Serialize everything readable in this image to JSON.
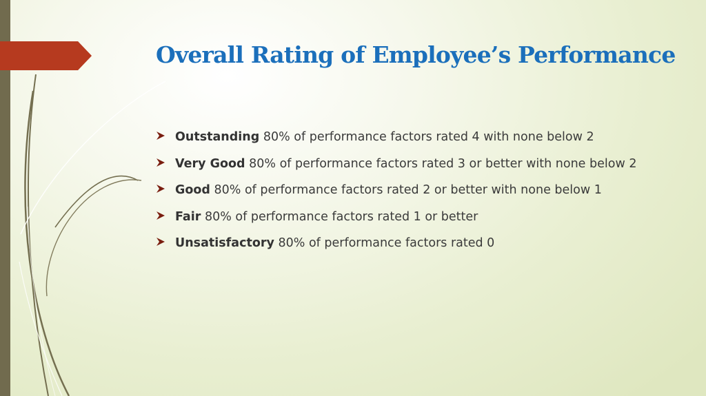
{
  "slide": {
    "title": "Overall Rating of Employee’s Performance",
    "bullets": [
      {
        "term": "Outstanding",
        "description": "80% of performance factors rated 4 with none below 2"
      },
      {
        "term": "Very Good",
        "description": "80% of performance factors rated 3 or better with none below 2"
      },
      {
        "term": "Good",
        "description": "80% of performance factors rated 2 or better with none below 1"
      },
      {
        "term": "Fair",
        "description": "80% of performance factors rated 1 or better"
      },
      {
        "term": "Unsatisfactory",
        "description": "80% of performance factors rated 0"
      }
    ]
  },
  "colors": {
    "title": "#1b6fbb",
    "accent_arrow": "#b63a1f",
    "side_bar": "#716b4e",
    "bullet_arrow": "#7a1e10"
  },
  "icons": {
    "bullet": "arrowhead-bullet-icon"
  }
}
